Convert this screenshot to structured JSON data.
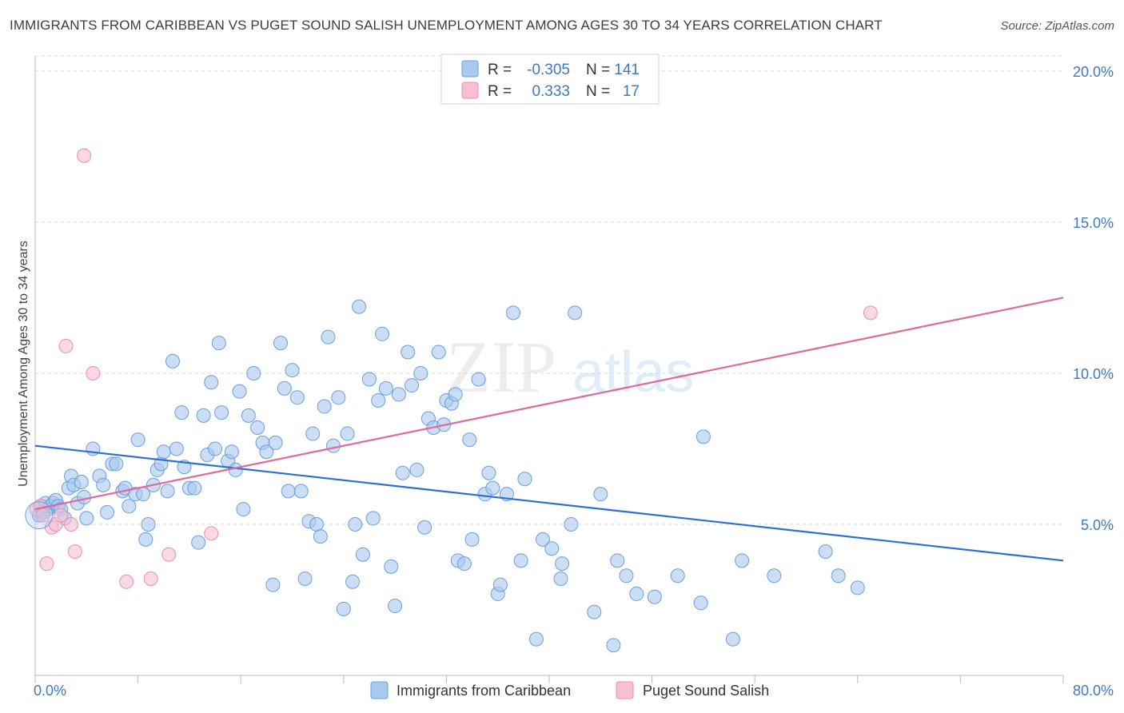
{
  "title": "IMMIGRANTS FROM CARIBBEAN VS PUGET SOUND SALISH UNEMPLOYMENT AMONG AGES 30 TO 34 YEARS CORRELATION CHART",
  "source": "Source: ZipAtlas.com",
  "watermark": {
    "zip": "ZIP",
    "atlas": "atlas"
  },
  "colors": {
    "blue_fill": "#a9c8ee",
    "blue_stroke": "#6a9fe0",
    "blue_line": "#2c6fd0",
    "pink_fill": "#f7bfd2",
    "pink_stroke": "#eb8fae",
    "pink_line": "#e0699a",
    "tick_text": "#3f78c6"
  },
  "legend": {
    "rows": [
      {
        "r_label": "R =",
        "r_value": "-0.305",
        "n_label": "N =",
        "n_value": "141"
      },
      {
        "r_label": "R =",
        "r_value": "0.333",
        "n_label": "N =",
        "n_value": "17"
      }
    ]
  },
  "bottom_legend": [
    "Immigrants from Caribbean",
    "Puget Sound Salish"
  ],
  "chart_data": {
    "type": "scatter",
    "title": "IMMIGRANTS FROM CARIBBEAN VS PUGET SOUND SALISH UNEMPLOYMENT AMONG AGES 30 TO 34 YEARS CORRELATION CHART",
    "xlabel": "",
    "ylabel": "Unemployment Among Ages 30 to 34 years",
    "xlim": [
      0,
      80
    ],
    "ylim": [
      0,
      20.5
    ],
    "x_tick_labels": [
      "0.0%",
      "80.0%"
    ],
    "y_ticks": [
      5,
      10,
      15,
      20
    ],
    "y_tick_labels": [
      "5.0%",
      "10.0%",
      "15.0%",
      "20.0%"
    ],
    "series": [
      {
        "name": "Immigrants from Caribbean",
        "r": -0.305,
        "n": 141,
        "trend": {
          "x": [
            0,
            80
          ],
          "y": [
            7.6,
            3.8
          ]
        },
        "points": [
          [
            0.3,
            5.3
          ],
          [
            0.5,
            5.6
          ],
          [
            0.6,
            5.4
          ],
          [
            0.8,
            5.7
          ],
          [
            1.0,
            5.5
          ],
          [
            1.2,
            5.6
          ],
          [
            1.4,
            5.7
          ],
          [
            1.6,
            5.8
          ],
          [
            1.8,
            5.6
          ],
          [
            2.0,
            5.5
          ],
          [
            2.3,
            5.2
          ],
          [
            2.6,
            6.2
          ],
          [
            2.8,
            6.6
          ],
          [
            3.0,
            6.3
          ],
          [
            3.3,
            5.7
          ],
          [
            3.6,
            6.4
          ],
          [
            3.8,
            5.9
          ],
          [
            4.0,
            5.2
          ],
          [
            4.5,
            7.5
          ],
          [
            5.0,
            6.6
          ],
          [
            5.3,
            6.3
          ],
          [
            5.6,
            5.4
          ],
          [
            6.0,
            7.0
          ],
          [
            6.3,
            7.0
          ],
          [
            6.8,
            6.1
          ],
          [
            7.0,
            6.2
          ],
          [
            7.3,
            5.6
          ],
          [
            7.8,
            6.0
          ],
          [
            8.0,
            7.8
          ],
          [
            8.4,
            6.0
          ],
          [
            8.6,
            4.5
          ],
          [
            8.8,
            5.0
          ],
          [
            9.2,
            6.3
          ],
          [
            9.5,
            6.8
          ],
          [
            9.8,
            7.0
          ],
          [
            10.0,
            7.4
          ],
          [
            10.3,
            6.1
          ],
          [
            10.7,
            10.4
          ],
          [
            11.0,
            7.5
          ],
          [
            11.4,
            8.7
          ],
          [
            11.6,
            6.9
          ],
          [
            12.0,
            6.2
          ],
          [
            12.4,
            6.2
          ],
          [
            12.7,
            4.4
          ],
          [
            13.1,
            8.6
          ],
          [
            13.4,
            7.3
          ],
          [
            13.7,
            9.7
          ],
          [
            14.0,
            7.5
          ],
          [
            14.3,
            11.0
          ],
          [
            14.5,
            8.7
          ],
          [
            15.0,
            7.1
          ],
          [
            15.3,
            7.4
          ],
          [
            15.6,
            6.8
          ],
          [
            15.9,
            9.4
          ],
          [
            16.2,
            5.5
          ],
          [
            16.6,
            8.6
          ],
          [
            17.0,
            10.0
          ],
          [
            17.3,
            8.2
          ],
          [
            17.7,
            7.7
          ],
          [
            18.0,
            7.4
          ],
          [
            18.5,
            3.0
          ],
          [
            18.7,
            7.7
          ],
          [
            19.1,
            11.0
          ],
          [
            19.4,
            9.5
          ],
          [
            19.7,
            6.1
          ],
          [
            20.0,
            10.1
          ],
          [
            20.4,
            9.2
          ],
          [
            20.7,
            6.1
          ],
          [
            21.0,
            3.2
          ],
          [
            21.3,
            5.1
          ],
          [
            21.6,
            8.0
          ],
          [
            21.9,
            5.0
          ],
          [
            22.2,
            4.6
          ],
          [
            22.5,
            8.9
          ],
          [
            22.8,
            11.2
          ],
          [
            23.2,
            7.6
          ],
          [
            23.6,
            9.2
          ],
          [
            24.0,
            2.2
          ],
          [
            24.3,
            8.0
          ],
          [
            24.7,
            3.1
          ],
          [
            24.9,
            5.0
          ],
          [
            25.2,
            12.2
          ],
          [
            25.5,
            4.0
          ],
          [
            26.0,
            9.8
          ],
          [
            26.3,
            5.2
          ],
          [
            26.7,
            9.1
          ],
          [
            27.0,
            11.3
          ],
          [
            27.3,
            9.5
          ],
          [
            27.7,
            3.6
          ],
          [
            28.0,
            2.3
          ],
          [
            28.3,
            9.3
          ],
          [
            28.6,
            6.7
          ],
          [
            29.0,
            10.7
          ],
          [
            29.3,
            9.6
          ],
          [
            29.7,
            6.8
          ],
          [
            30.0,
            10.0
          ],
          [
            30.3,
            4.9
          ],
          [
            30.6,
            8.5
          ],
          [
            31.0,
            8.2
          ],
          [
            31.4,
            10.7
          ],
          [
            31.8,
            8.3
          ],
          [
            32.0,
            9.1
          ],
          [
            32.4,
            9.0
          ],
          [
            32.7,
            9.3
          ],
          [
            32.9,
            3.8
          ],
          [
            33.4,
            3.7
          ],
          [
            33.8,
            7.8
          ],
          [
            34.0,
            4.5
          ],
          [
            34.5,
            9.8
          ],
          [
            35.0,
            6.0
          ],
          [
            35.3,
            6.7
          ],
          [
            35.6,
            6.2
          ],
          [
            36.0,
            2.7
          ],
          [
            36.2,
            3.0
          ],
          [
            36.7,
            6.0
          ],
          [
            37.2,
            12.0
          ],
          [
            37.8,
            3.8
          ],
          [
            38.1,
            6.5
          ],
          [
            39.0,
            1.2
          ],
          [
            39.5,
            4.5
          ],
          [
            40.2,
            4.2
          ],
          [
            40.9,
            3.2
          ],
          [
            41.0,
            3.7
          ],
          [
            41.7,
            5.0
          ],
          [
            42.0,
            12.0
          ],
          [
            43.5,
            2.1
          ],
          [
            44.0,
            6.0
          ],
          [
            45.0,
            1.0
          ],
          [
            45.3,
            3.8
          ],
          [
            46.0,
            3.3
          ],
          [
            46.8,
            2.7
          ],
          [
            48.2,
            2.6
          ],
          [
            50.0,
            3.3
          ],
          [
            51.8,
            2.4
          ],
          [
            52.0,
            7.9
          ],
          [
            54.3,
            1.2
          ],
          [
            55.0,
            3.8
          ],
          [
            57.5,
            3.3
          ],
          [
            61.5,
            4.1
          ],
          [
            62.5,
            3.3
          ],
          [
            64.0,
            2.9
          ]
        ]
      },
      {
        "name": "Puget Sound Salish",
        "r": 0.333,
        "n": 17,
        "trend": {
          "x": [
            0,
            80
          ],
          "y": [
            5.5,
            12.5
          ]
        },
        "points": [
          [
            0.1,
            5.5
          ],
          [
            0.4,
            5.6
          ],
          [
            0.6,
            5.3
          ],
          [
            0.9,
            3.7
          ],
          [
            1.3,
            4.9
          ],
          [
            1.6,
            5.0
          ],
          [
            2.0,
            5.3
          ],
          [
            2.4,
            10.9
          ],
          [
            2.8,
            5.0
          ],
          [
            3.1,
            4.1
          ],
          [
            3.8,
            17.2
          ],
          [
            4.5,
            10.0
          ],
          [
            7.1,
            3.1
          ],
          [
            9.0,
            3.2
          ],
          [
            10.4,
            4.0
          ],
          [
            13.7,
            4.7
          ],
          [
            65.0,
            12.0
          ]
        ]
      }
    ]
  }
}
